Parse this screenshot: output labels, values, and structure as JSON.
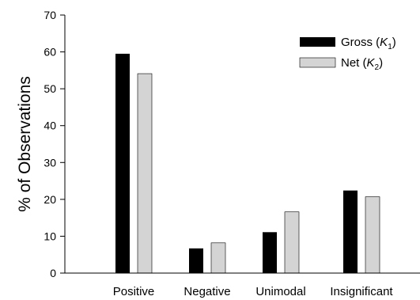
{
  "chart_data": {
    "type": "bar",
    "title": "",
    "xlabel": "",
    "ylabel": "% of Observations",
    "ylim": [
      0,
      70
    ],
    "yticks": [
      0,
      10,
      20,
      30,
      40,
      50,
      60,
      70
    ],
    "grid": false,
    "legend_position": "top-right",
    "categories": [
      "Positive",
      "Negative",
      "Unimodal",
      "Insignificant"
    ],
    "series": [
      {
        "name": "Gross (K1)",
        "legend_text": "Gross (",
        "legend_var": "K",
        "legend_sub": "1",
        "legend_close": ")",
        "color": "#000000",
        "values": [
          59.5,
          6.7,
          11.1,
          22.4
        ]
      },
      {
        "name": "Net (K2)",
        "legend_text": "Net (",
        "legend_var": "K",
        "legend_sub": "2",
        "legend_close": ")",
        "color": "#d4d4d4",
        "values": [
          54.1,
          8.2,
          16.6,
          20.7
        ]
      }
    ]
  }
}
